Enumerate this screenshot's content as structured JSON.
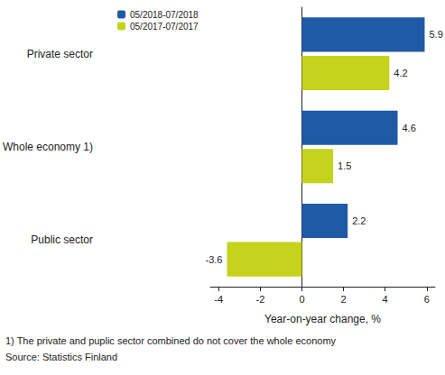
{
  "chart_data": {
    "type": "bar",
    "orientation": "horizontal",
    "categories": [
      "Private sector",
      "Whole economy 1)",
      "Public sector"
    ],
    "series": [
      {
        "name": "05/2018-07/2018",
        "color": "#1f5aa6",
        "values": [
          5.9,
          4.6,
          2.2
        ]
      },
      {
        "name": "05/2017-07/2017",
        "color": "#c5d31d",
        "values": [
          4.2,
          1.5,
          -3.6
        ]
      }
    ],
    "xlabel": "Year-on-year change, %",
    "xlim": [
      -4.4,
      6.4
    ],
    "xticks": [
      -4,
      -2,
      0,
      2,
      4,
      6
    ],
    "grid": false,
    "legend": "upper left",
    "data_labels": true,
    "notes": [
      "1) The private and puplic sector combined do not cover the whole economy",
      "Source: Statistics Finland"
    ]
  }
}
